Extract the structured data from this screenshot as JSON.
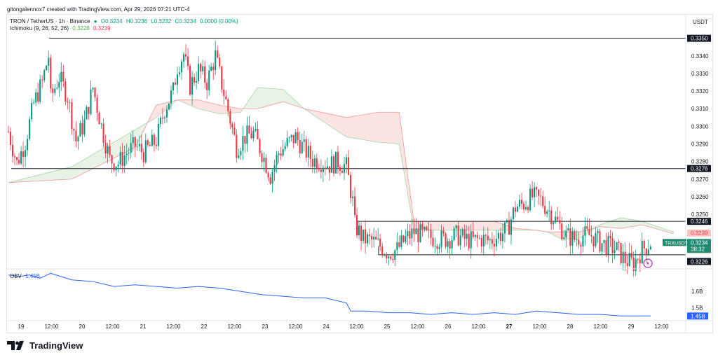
{
  "header": {
    "caption": "gitongalennox7 created with TradingView.com, Apr 29, 2026 07:21 UTC-4"
  },
  "legend": {
    "symbol": "TRON / TetherUS · 1h · Binance",
    "open": "O0.3234",
    "high": "H0.3236",
    "low": "L0.3232",
    "close": "C0.3234",
    "change": "0.0000 (0.00%)",
    "ichimoku_label": "Ichimoku (9, 26, 52, 26)",
    "ichimoku_v1": "0.3228",
    "ichimoku_v2": "0.3239",
    "obv_label": "OBV",
    "obv_value": "1.45B"
  },
  "currency": "USDT",
  "brand": {
    "name": "TradingView"
  },
  "colors": {
    "up": "#089981",
    "down": "#f23645",
    "obv": "#2962ff",
    "cloud_green": "#e8f3e6",
    "cloud_red": "#fbe4e2",
    "line": "#131722"
  },
  "chart_data": {
    "type": "candlestick",
    "timeframe": "1h",
    "x_tick_labels": [
      "19",
      "12:00",
      "20",
      "12:00",
      "21",
      "12:00",
      "22",
      "12:00",
      "23",
      "12:00",
      "24",
      "12:00",
      "25",
      "12:00",
      "26",
      "12:00",
      "27",
      "12:00",
      "28",
      "12:00",
      "29",
      "12:00"
    ],
    "y_tick_labels": [
      "0.3350",
      "0.3340",
      "0.3330",
      "0.3320",
      "0.3310",
      "0.3300",
      "0.3290",
      "0.3280",
      "0.3270",
      "0.3260",
      "0.3250",
      "0.3240",
      "0.3230"
    ],
    "ylim": [
      0.3219,
      0.3363
    ],
    "horizontal_levels": [
      0.335,
      0.3276,
      0.3246,
      0.3226
    ],
    "price_labels": [
      {
        "text": "0.3350",
        "style": "level"
      },
      {
        "text": "0.3276",
        "style": "level"
      },
      {
        "text": "0.3246",
        "style": "level"
      },
      {
        "text": "0.3239",
        "style": "ichimoku-red"
      },
      {
        "text": "TRXUSDT",
        "style": "current"
      },
      {
        "text": "0.3234",
        "style": "current"
      },
      {
        "text": "38:32",
        "style": "current"
      },
      {
        "text": "0.3228",
        "style": "ichimoku-green"
      },
      {
        "text": "0.3226",
        "style": "level"
      }
    ],
    "close_path": [
      [
        0,
        0.3297
      ],
      [
        4,
        0.3279
      ],
      [
        8,
        0.3291
      ],
      [
        12,
        0.3313
      ],
      [
        16,
        0.3325
      ],
      [
        19,
        0.334
      ],
      [
        20,
        0.3316
      ],
      [
        24,
        0.3328
      ],
      [
        28,
        0.3317
      ],
      [
        32,
        0.3292
      ],
      [
        36,
        0.3302
      ],
      [
        40,
        0.3322
      ],
      [
        44,
        0.33
      ],
      [
        48,
        0.3281
      ],
      [
        52,
        0.3279
      ],
      [
        56,
        0.3285
      ],
      [
        60,
        0.3289
      ],
      [
        64,
        0.3285
      ],
      [
        70,
        0.3292
      ],
      [
        74,
        0.331
      ],
      [
        78,
        0.332
      ],
      [
        80,
        0.3334
      ],
      [
        83,
        0.3341
      ],
      [
        86,
        0.3323
      ],
      [
        90,
        0.3332
      ],
      [
        94,
        0.3325
      ],
      [
        98,
        0.334
      ],
      [
        101,
        0.3324
      ],
      [
        104,
        0.3309
      ],
      [
        108,
        0.3288
      ],
      [
        112,
        0.3294
      ],
      [
        116,
        0.3296
      ],
      [
        120,
        0.3285
      ],
      [
        124,
        0.3272
      ],
      [
        128,
        0.3285
      ],
      [
        132,
        0.329
      ],
      [
        136,
        0.3294
      ],
      [
        140,
        0.3287
      ],
      [
        144,
        0.3281
      ],
      [
        148,
        0.328
      ],
      [
        152,
        0.3278
      ],
      [
        156,
        0.328
      ],
      [
        160,
        0.3277
      ],
      [
        163,
        0.3257
      ],
      [
        164,
        0.3244
      ],
      [
        168,
        0.3236
      ],
      [
        172,
        0.3235
      ],
      [
        176,
        0.3232
      ],
      [
        180,
        0.3228
      ],
      [
        184,
        0.323
      ],
      [
        188,
        0.3236
      ],
      [
        192,
        0.324
      ],
      [
        196,
        0.3238
      ],
      [
        200,
        0.3237
      ],
      [
        204,
        0.3236
      ],
      [
        208,
        0.3236
      ],
      [
        212,
        0.3238
      ],
      [
        216,
        0.3236
      ],
      [
        220,
        0.3235
      ],
      [
        224,
        0.3236
      ],
      [
        228,
        0.3235
      ],
      [
        232,
        0.3238
      ],
      [
        236,
        0.3241
      ],
      [
        240,
        0.3254
      ],
      [
        244,
        0.3256
      ],
      [
        248,
        0.326
      ],
      [
        252,
        0.3258
      ],
      [
        256,
        0.3252
      ],
      [
        260,
        0.3245
      ],
      [
        264,
        0.3238
      ],
      [
        268,
        0.3236
      ],
      [
        272,
        0.3238
      ],
      [
        276,
        0.3238
      ],
      [
        280,
        0.3234
      ],
      [
        284,
        0.3232
      ],
      [
        288,
        0.323
      ],
      [
        292,
        0.3224
      ],
      [
        296,
        0.3222
      ],
      [
        300,
        0.323
      ],
      [
        304,
        0.3234
      ]
    ],
    "cloud": {
      "span_a": [
        [
          0,
          0.3268
        ],
        [
          30,
          0.3277
        ],
        [
          60,
          0.3298
        ],
        [
          70,
          0.3305
        ],
        [
          80,
          0.3315
        ],
        [
          90,
          0.331
        ],
        [
          100,
          0.3307
        ],
        [
          110,
          0.3308
        ],
        [
          118,
          0.3322
        ],
        [
          130,
          0.3321
        ],
        [
          140,
          0.331
        ],
        [
          160,
          0.3294
        ],
        [
          175,
          0.3291
        ],
        [
          185,
          0.329
        ],
        [
          192,
          0.3241
        ],
        [
          200,
          0.3241
        ],
        [
          230,
          0.3241
        ],
        [
          240,
          0.3241
        ],
        [
          250,
          0.3241
        ],
        [
          255,
          0.324
        ],
        [
          262,
          0.3236
        ],
        [
          270,
          0.3236
        ],
        [
          280,
          0.3244
        ],
        [
          290,
          0.3248
        ],
        [
          300,
          0.3246
        ],
        [
          315,
          0.324
        ]
      ],
      "span_b": [
        [
          0,
          0.3268
        ],
        [
          30,
          0.327
        ],
        [
          60,
          0.3288
        ],
        [
          70,
          0.3312
        ],
        [
          80,
          0.3315
        ],
        [
          90,
          0.3315
        ],
        [
          100,
          0.3312
        ],
        [
          110,
          0.331
        ],
        [
          118,
          0.331
        ],
        [
          130,
          0.3314
        ],
        [
          140,
          0.331
        ],
        [
          160,
          0.3305
        ],
        [
          175,
          0.3308
        ],
        [
          185,
          0.3308
        ],
        [
          192,
          0.3246
        ],
        [
          200,
          0.3246
        ],
        [
          230,
          0.3246
        ],
        [
          240,
          0.3242
        ],
        [
          250,
          0.3241
        ],
        [
          255,
          0.324
        ],
        [
          262,
          0.324
        ],
        [
          270,
          0.324
        ],
        [
          280,
          0.3243
        ],
        [
          290,
          0.3242
        ],
        [
          300,
          0.3244
        ],
        [
          315,
          0.3239
        ]
      ]
    },
    "obv": {
      "label": "OBV",
      "y_tick_labels": [
        "1.6B",
        "1.5B",
        "1.45B"
      ],
      "ylim": [
        1.43,
        1.72
      ],
      "path": [
        [
          0,
          1.7
        ],
        [
          5,
          1.69
        ],
        [
          10,
          1.7
        ],
        [
          15,
          1.68
        ],
        [
          20,
          1.71
        ],
        [
          25,
          1.69
        ],
        [
          30,
          1.67
        ],
        [
          40,
          1.66
        ],
        [
          50,
          1.63
        ],
        [
          60,
          1.64
        ],
        [
          70,
          1.63
        ],
        [
          80,
          1.62
        ],
        [
          90,
          1.63
        ],
        [
          100,
          1.62
        ],
        [
          110,
          1.6
        ],
        [
          120,
          1.58
        ],
        [
          130,
          1.57
        ],
        [
          140,
          1.56
        ],
        [
          150,
          1.56
        ],
        [
          160,
          1.53
        ],
        [
          162,
          1.48
        ],
        [
          170,
          1.48
        ],
        [
          180,
          1.47
        ],
        [
          190,
          1.47
        ],
        [
          200,
          1.46
        ],
        [
          210,
          1.47
        ],
        [
          220,
          1.46
        ],
        [
          230,
          1.47
        ],
        [
          240,
          1.46
        ],
        [
          250,
          1.48
        ],
        [
          260,
          1.47
        ],
        [
          270,
          1.46
        ],
        [
          280,
          1.46
        ],
        [
          290,
          1.45
        ],
        [
          304,
          1.45
        ]
      ]
    }
  }
}
